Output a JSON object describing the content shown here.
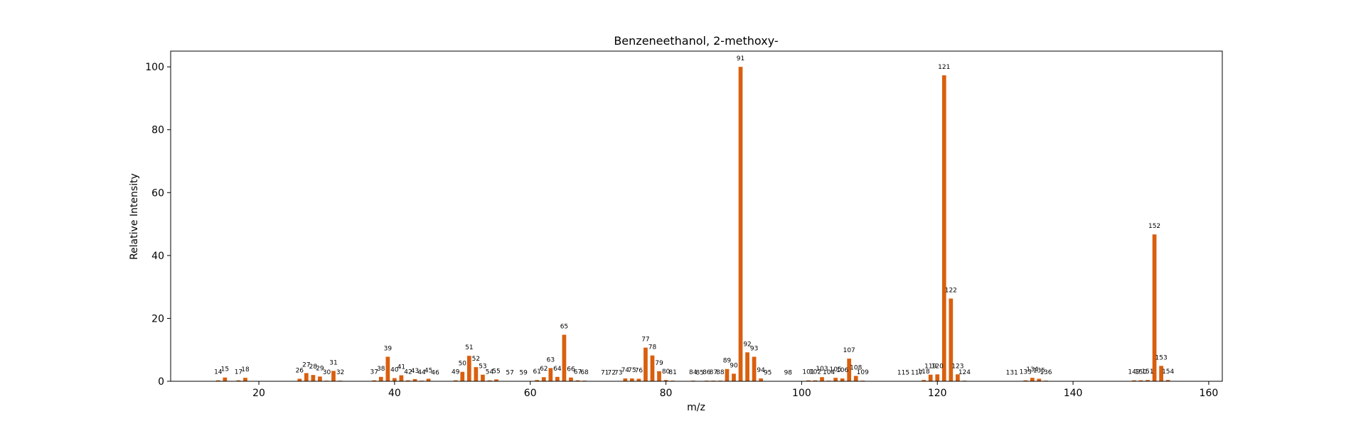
{
  "chart_data": {
    "type": "bar",
    "title": "Benzeneethanol, 2-methoxy-",
    "xlabel": "m/z",
    "ylabel": "Relative Intensity",
    "xlim": [
      7,
      162
    ],
    "ylim": [
      0,
      105
    ],
    "xticks": [
      20,
      40,
      60,
      80,
      100,
      120,
      140,
      160
    ],
    "yticks": [
      0,
      20,
      40,
      60,
      80,
      100
    ],
    "grid": false,
    "bar_color": "#d95f0e",
    "points": [
      {
        "x": 14,
        "y": 0.3
      },
      {
        "x": 15,
        "y": 1.2
      },
      {
        "x": 17,
        "y": 0.3
      },
      {
        "x": 18,
        "y": 1.1
      },
      {
        "x": 26,
        "y": 0.8
      },
      {
        "x": 27,
        "y": 2.6
      },
      {
        "x": 28,
        "y": 2.0
      },
      {
        "x": 29,
        "y": 1.5
      },
      {
        "x": 30,
        "y": 0.2
      },
      {
        "x": 31,
        "y": 3.3
      },
      {
        "x": 32,
        "y": 0.2
      },
      {
        "x": 37,
        "y": 0.3
      },
      {
        "x": 38,
        "y": 1.4
      },
      {
        "x": 39,
        "y": 7.8
      },
      {
        "x": 40,
        "y": 1.0
      },
      {
        "x": 41,
        "y": 1.9
      },
      {
        "x": 42,
        "y": 0.3
      },
      {
        "x": 43,
        "y": 0.7
      },
      {
        "x": 44,
        "y": 0.2
      },
      {
        "x": 45,
        "y": 0.8
      },
      {
        "x": 46,
        "y": 0.1
      },
      {
        "x": 49,
        "y": 0.3
      },
      {
        "x": 50,
        "y": 3.0
      },
      {
        "x": 51,
        "y": 8.1
      },
      {
        "x": 52,
        "y": 4.5
      },
      {
        "x": 53,
        "y": 2.1
      },
      {
        "x": 54,
        "y": 0.3
      },
      {
        "x": 55,
        "y": 0.6
      },
      {
        "x": 57,
        "y": 0.1
      },
      {
        "x": 59,
        "y": 0.1
      },
      {
        "x": 61,
        "y": 0.4
      },
      {
        "x": 62,
        "y": 1.3
      },
      {
        "x": 63,
        "y": 4.2
      },
      {
        "x": 64,
        "y": 1.4
      },
      {
        "x": 65,
        "y": 14.8
      },
      {
        "x": 66,
        "y": 1.2
      },
      {
        "x": 67,
        "y": 0.3
      },
      {
        "x": 68,
        "y": 0.2
      },
      {
        "x": 71,
        "y": 0.1
      },
      {
        "x": 72,
        "y": 0.1
      },
      {
        "x": 73,
        "y": 0.1
      },
      {
        "x": 74,
        "y": 0.9
      },
      {
        "x": 75,
        "y": 0.9
      },
      {
        "x": 76,
        "y": 0.8
      },
      {
        "x": 77,
        "y": 10.7
      },
      {
        "x": 78,
        "y": 8.2
      },
      {
        "x": 79,
        "y": 3.2
      },
      {
        "x": 80,
        "y": 0.4
      },
      {
        "x": 81,
        "y": 0.2
      },
      {
        "x": 84,
        "y": 0.2
      },
      {
        "x": 85,
        "y": 0.1
      },
      {
        "x": 86,
        "y": 0.2
      },
      {
        "x": 87,
        "y": 0.2
      },
      {
        "x": 88,
        "y": 0.2
      },
      {
        "x": 89,
        "y": 3.9
      },
      {
        "x": 90,
        "y": 2.4
      },
      {
        "x": 91,
        "y": 100
      },
      {
        "x": 92,
        "y": 9.2
      },
      {
        "x": 93,
        "y": 7.8
      },
      {
        "x": 94,
        "y": 0.9
      },
      {
        "x": 95,
        "y": 0.1
      },
      {
        "x": 98,
        "y": 0.1
      },
      {
        "x": 101,
        "y": 0.3
      },
      {
        "x": 102,
        "y": 0.3
      },
      {
        "x": 103,
        "y": 1.3
      },
      {
        "x": 104,
        "y": 0.2
      },
      {
        "x": 105,
        "y": 1.1
      },
      {
        "x": 106,
        "y": 0.9
      },
      {
        "x": 107,
        "y": 7.2
      },
      {
        "x": 108,
        "y": 1.7
      },
      {
        "x": 109,
        "y": 0.2
      },
      {
        "x": 115,
        "y": 0.1
      },
      {
        "x": 117,
        "y": 0.1
      },
      {
        "x": 118,
        "y": 0.4
      },
      {
        "x": 119,
        "y": 2.1
      },
      {
        "x": 120,
        "y": 2.2
      },
      {
        "x": 121,
        "y": 97.3
      },
      {
        "x": 122,
        "y": 26.3
      },
      {
        "x": 123,
        "y": 2.2
      },
      {
        "x": 124,
        "y": 0.2
      },
      {
        "x": 131,
        "y": 0.1
      },
      {
        "x": 133,
        "y": 0.3
      },
      {
        "x": 134,
        "y": 1.1
      },
      {
        "x": 135,
        "y": 0.8
      },
      {
        "x": 136,
        "y": 0.2
      },
      {
        "x": 149,
        "y": 0.3
      },
      {
        "x": 150,
        "y": 0.3
      },
      {
        "x": 151,
        "y": 0.4
      },
      {
        "x": 152,
        "y": 46.7
      },
      {
        "x": 153,
        "y": 4.9
      },
      {
        "x": 154,
        "y": 0.4
      }
    ]
  }
}
